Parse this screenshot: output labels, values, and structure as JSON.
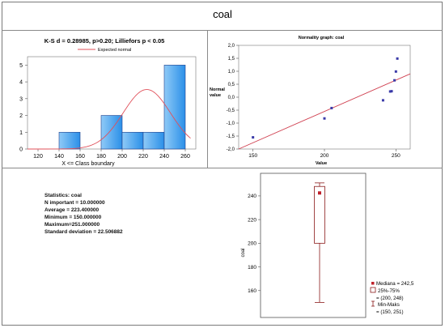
{
  "page": {
    "title": "coal"
  },
  "statistics": {
    "lines": [
      "Statistics: coal",
      "N important = 10.000000",
      "Average = 223.400000",
      "Minimum = 150.000000",
      "Maximum=251.000000",
      "Standard deviation = 22.506882"
    ]
  },
  "chart_data": [
    {
      "type": "bar",
      "title": "K-S  d = 0.28985,  p>0.20; Lilliefors  p < 0.05",
      "xlabel": "X <= Class boundary",
      "ylabel": "",
      "legend": [
        "Expected normal"
      ],
      "legend_placement": "top",
      "bins": [
        [
          140,
          160
        ],
        [
          160,
          180
        ],
        [
          180,
          200
        ],
        [
          200,
          220
        ],
        [
          220,
          240
        ],
        [
          240,
          260
        ]
      ],
      "values": [
        1,
        0,
        2,
        1,
        1,
        5
      ],
      "expected_normal": {
        "mean": 223.4,
        "sd": 22.506882,
        "n": 10,
        "bin_width": 20
      },
      "xlim": [
        110,
        270
      ],
      "ylim": [
        0,
        5.5
      ],
      "xticks": [
        "120",
        "140",
        "160",
        "180",
        "200",
        "220",
        "240",
        "260"
      ],
      "yticks": [
        "0",
        "1",
        "2",
        "3",
        "4",
        "5"
      ],
      "colors": {
        "bar": "#2a8fe8",
        "bar_edge": "#1f3f8a",
        "curve": "#e0505a"
      }
    },
    {
      "type": "scatter",
      "title": "Normality graph: coal",
      "xlabel": "Value",
      "ylabel": "Normal value",
      "x": [
        150,
        200,
        205,
        241,
        246,
        247,
        249,
        250,
        251
      ],
      "y": [
        -1.55,
        -0.82,
        -0.42,
        -0.12,
        0.22,
        0.23,
        0.65,
        0.99,
        1.49
      ],
      "line": {
        "x": [
          140,
          260
        ],
        "y": [
          -2.0,
          0.9
        ]
      },
      "xlim": [
        140,
        260
      ],
      "ylim": [
        -2.0,
        2.0
      ],
      "xticks": [
        "150",
        "200",
        "250"
      ],
      "yticks": [
        "2,0",
        "1,5",
        "1,0",
        "0,5",
        "0,0",
        "-0,5",
        "-1,0",
        "-1,5",
        "-2,0"
      ],
      "colors": {
        "point": "#3a3aa8",
        "line": "#d04050"
      }
    },
    {
      "type": "box",
      "ylabel": "coal",
      "median": 242.5,
      "q1": 200,
      "q3": 248,
      "min": 150,
      "max": 251,
      "ylim": [
        140,
        255
      ],
      "yticks": [
        "160",
        "180",
        "200",
        "220",
        "240"
      ],
      "legend": [
        "Mediana = 242,5",
        "25%-75%",
        "= (200, 248)",
        "Min-Maks",
        "= (150, 251)"
      ],
      "colors": {
        "box": "#8b1a1a",
        "median": "#c0202a"
      }
    }
  ]
}
